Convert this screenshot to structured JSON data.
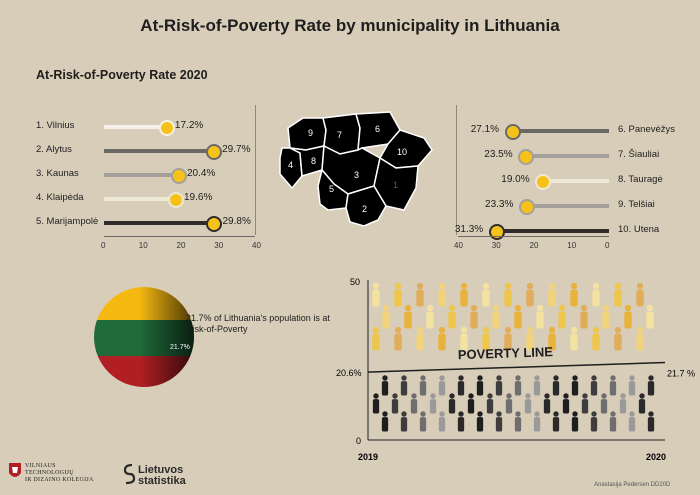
{
  "title": "At-Risk-of-Poverty Rate by municipality in Lithuania",
  "chart_data": [
    {
      "type": "bar",
      "orientation": "horizontal",
      "title": "At-Risk-of-Poverty Rate 2020",
      "categories": [
        "1. Vilnius",
        "2. Alytus",
        "3. Kaunas",
        "4. Klaipėda",
        "5. Marijampolė"
      ],
      "values": [
        17.2,
        29.7,
        20.4,
        19.6,
        29.8
      ],
      "value_labels": [
        "17.2%",
        "29.7%",
        "20.4%",
        "19.6%",
        "29.8%"
      ],
      "xlim": [
        0,
        40
      ],
      "xticks": [
        "0",
        "10",
        "20",
        "30",
        "40"
      ],
      "bar_colors": [
        "#f5f1e8",
        "#6b6966",
        "#a3a09b",
        "#efe9d8",
        "#2e2d2b"
      ]
    },
    {
      "type": "bar",
      "orientation": "horizontal-reversed",
      "categories": [
        "6. Panevėžys",
        "7. Šiauliai",
        "8. Tauragė",
        "9. Telšiai",
        "10. Utena"
      ],
      "values": [
        27.1,
        23.5,
        19.0,
        23.3,
        31.3
      ],
      "value_labels": [
        "27.1%",
        "23.5%",
        "19.0%",
        "23.3%",
        "31.3%"
      ],
      "xlim": [
        0,
        40
      ],
      "xticks": [
        "40",
        "30",
        "20",
        "10",
        "0"
      ],
      "bar_colors": [
        "#6b6966",
        "#a3a09b",
        "#efe9d8",
        "#a3a09b",
        "#2e2d2b"
      ]
    },
    {
      "type": "pie",
      "values": [
        21.7
      ],
      "slice_labels": [
        "21.7%"
      ],
      "annotation": "21.7% of Lithuania's population is at Risk-of-Poverty"
    },
    {
      "type": "line",
      "x": [
        "2019",
        "2020"
      ],
      "y": [
        20.6,
        21.7
      ],
      "point_labels": [
        "20.6%",
        "21.7 %"
      ],
      "annotation": "POVERTY LINE",
      "ylim": [
        0,
        50
      ],
      "yticks": [
        "0",
        "50"
      ]
    }
  ],
  "map": {
    "regions": [
      "1",
      "2",
      "3",
      "4",
      "5",
      "6",
      "7",
      "8",
      "9",
      "10"
    ],
    "colors": [
      "#f2f2f2",
      "#7a7a7a",
      "#b5b5b5",
      "#e9e9e9",
      "#484848",
      "#8a8a8a",
      "#a3a3a3",
      "#d4d4d4",
      "#c4c4c4",
      "#383838"
    ]
  },
  "footer": {
    "logo1": "VILNIAUS\nTECHNOLOGIJŲ\nIR DIZAINO KOLEGIJA",
    "logo2": "Lietuvos\nstatistika",
    "author": "Anastasija Pedersen DD20D"
  },
  "colors": {
    "background": "#d8cdb9",
    "flag_yellow": "#f6b911",
    "flag_green": "#1f6b3a",
    "flag_red": "#b11f24"
  }
}
